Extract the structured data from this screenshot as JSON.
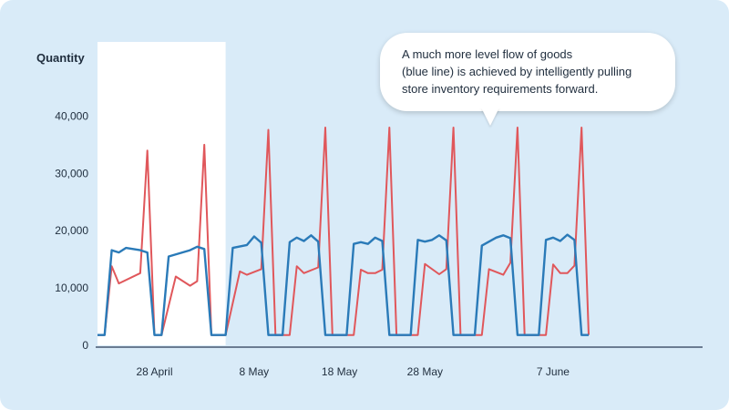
{
  "chart_data": {
    "type": "line",
    "ylabel": "Quantity",
    "ylim": [
      0,
      45000
    ],
    "yticks": [
      0,
      10000,
      20000,
      30000,
      40000
    ],
    "ytick_labels": [
      "0",
      "10,000",
      "20,000",
      "30,000",
      "40,000"
    ],
    "xlim": [
      0,
      85
    ],
    "xticks": [
      8,
      22,
      34,
      46,
      64
    ],
    "xtick_labels": [
      "28 April",
      "8 May",
      "18 May",
      "28 May",
      "7 June"
    ],
    "highlight_range": [
      0,
      18
    ],
    "series": [
      {
        "name": "red line",
        "color": "#e0575b",
        "points": [
          [
            0,
            1800
          ],
          [
            1,
            1800
          ],
          [
            2,
            13800
          ],
          [
            3,
            10800
          ],
          [
            6,
            12600
          ],
          [
            7,
            34000
          ],
          [
            8,
            1800
          ],
          [
            9,
            1800
          ],
          [
            11,
            12000
          ],
          [
            13,
            10400
          ],
          [
            14,
            11200
          ],
          [
            15,
            35000
          ],
          [
            16,
            1800
          ],
          [
            18,
            1800
          ],
          [
            20,
            12900
          ],
          [
            21,
            12300
          ],
          [
            23,
            13300
          ],
          [
            24,
            37600
          ],
          [
            25,
            1800
          ],
          [
            27,
            1800
          ],
          [
            28,
            13800
          ],
          [
            29,
            12600
          ],
          [
            31,
            13600
          ],
          [
            32,
            38000
          ],
          [
            33,
            1800
          ],
          [
            36,
            1800
          ],
          [
            37,
            13200
          ],
          [
            38,
            12600
          ],
          [
            39,
            12600
          ],
          [
            40,
            13200
          ],
          [
            41,
            38000
          ],
          [
            42,
            1800
          ],
          [
            45,
            1800
          ],
          [
            46,
            14200
          ],
          [
            48,
            12400
          ],
          [
            49,
            13300
          ],
          [
            50,
            38000
          ],
          [
            51,
            1800
          ],
          [
            54,
            1800
          ],
          [
            55,
            13300
          ],
          [
            57,
            12300
          ],
          [
            58,
            14400
          ],
          [
            59,
            38000
          ],
          [
            60,
            1800
          ],
          [
            63,
            1800
          ],
          [
            64,
            14100
          ],
          [
            65,
            12600
          ],
          [
            66,
            12600
          ],
          [
            67,
            13900
          ],
          [
            68,
            38000
          ],
          [
            69,
            1800
          ]
        ]
      },
      {
        "name": "blue line",
        "color": "#2a7ab8",
        "points": [
          [
            0,
            1800
          ],
          [
            1,
            1800
          ],
          [
            2,
            16600
          ],
          [
            3,
            16200
          ],
          [
            4,
            17000
          ],
          [
            6,
            16600
          ],
          [
            7,
            16200
          ],
          [
            8,
            1800
          ],
          [
            9,
            1800
          ],
          [
            10,
            15500
          ],
          [
            13,
            16600
          ],
          [
            14,
            17200
          ],
          [
            15,
            16800
          ],
          [
            16,
            1800
          ],
          [
            18,
            1800
          ],
          [
            19,
            17000
          ],
          [
            21,
            17500
          ],
          [
            22,
            19000
          ],
          [
            23,
            17900
          ],
          [
            24,
            1800
          ],
          [
            26,
            1800
          ],
          [
            27,
            18000
          ],
          [
            28,
            18800
          ],
          [
            29,
            18200
          ],
          [
            30,
            19200
          ],
          [
            31,
            18100
          ],
          [
            32,
            1800
          ],
          [
            35,
            1800
          ],
          [
            36,
            17700
          ],
          [
            37,
            18000
          ],
          [
            38,
            17700
          ],
          [
            39,
            18800
          ],
          [
            40,
            18200
          ],
          [
            41,
            1800
          ],
          [
            44,
            1800
          ],
          [
            45,
            18400
          ],
          [
            46,
            18100
          ],
          [
            47,
            18400
          ],
          [
            48,
            19200
          ],
          [
            49,
            18300
          ],
          [
            50,
            1800
          ],
          [
            53,
            1800
          ],
          [
            54,
            17400
          ],
          [
            56,
            18800
          ],
          [
            57,
            19200
          ],
          [
            58,
            18700
          ],
          [
            59,
            1800
          ],
          [
            62,
            1800
          ],
          [
            63,
            18400
          ],
          [
            64,
            18800
          ],
          [
            65,
            18200
          ],
          [
            66,
            19300
          ],
          [
            67,
            18400
          ],
          [
            68,
            1800
          ],
          [
            69,
            1800
          ]
        ]
      }
    ],
    "annotation": {
      "lines": [
        "A much more level flow of goods",
        "(blue line) is achieved by intelligently pulling",
        "store inventory requirements forward."
      ]
    }
  }
}
